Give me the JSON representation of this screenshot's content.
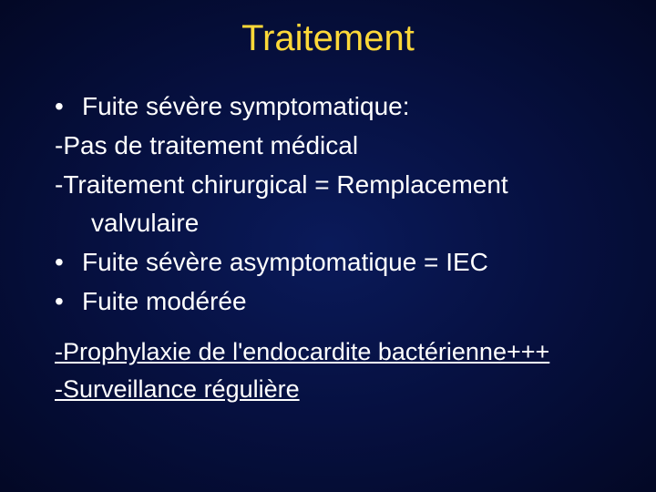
{
  "title": {
    "text": "Traitement",
    "color": "#fdd838",
    "fontsize": 40
  },
  "body": {
    "color": "#ffffff",
    "fontsize": 28,
    "bullet": "•",
    "lines": [
      {
        "kind": "bullet",
        "text": "Fuite sévère symptomatique:"
      },
      {
        "kind": "dash",
        "text": "-Pas de traitement médical"
      },
      {
        "kind": "dash",
        "text": "-Traitement chirurgical = Remplacement"
      },
      {
        "kind": "cont",
        "text": "valvulaire"
      },
      {
        "kind": "bullet",
        "text": "Fuite sévère asymptomatique = IEC"
      },
      {
        "kind": "bullet",
        "text": "Fuite modérée"
      }
    ]
  },
  "footer": {
    "color": "#ffffff",
    "fontsize": 27,
    "lines": [
      {
        "text": "-Prophylaxie de l'endocardite bactérienne+++"
      },
      {
        "text": "-Surveillance régulière"
      }
    ]
  }
}
